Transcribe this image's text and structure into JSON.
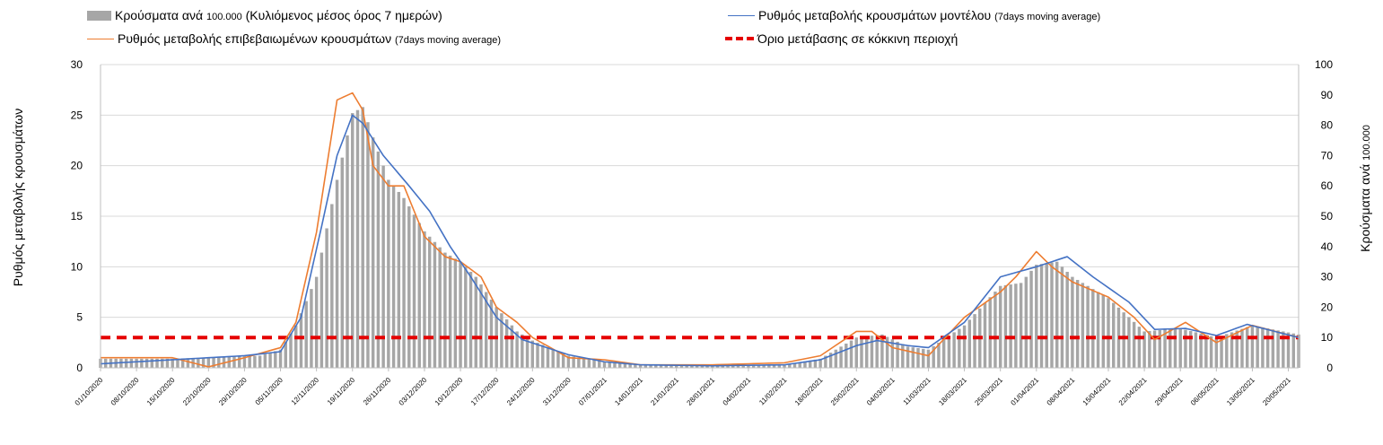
{
  "chart_data": {
    "type": "bar+line",
    "legend": {
      "bars": {
        "label": "Κρούσματα ανά",
        "small": "100.000",
        "label2": "(Κυλιόμενος μέσος όρος 7 ημερών)"
      },
      "model": {
        "label": "Ρυθμός μεταβολής κρουσμάτων μοντέλου",
        "small": "(7days moving average)"
      },
      "confirmed": {
        "label": "Ρυθμός μεταβολής επιβεβαιωμένων κρουσμάτων",
        "small": "(7days moving average)"
      },
      "threshold": {
        "label": "Όριο μετάβασης σε κόκκινη περιοχή"
      }
    },
    "ylabel_left": "Ρυθμός μεταβολής κρουσμάτων",
    "ylabel_right": "Κρούσματα ανά",
    "ylabel_right_small": "100.000",
    "ylim_left": [
      0,
      30
    ],
    "ylim_right": [
      0,
      100
    ],
    "yticks_left": [
      0,
      5,
      10,
      15,
      20,
      25,
      30
    ],
    "yticks_right": [
      0,
      10,
      20,
      30,
      40,
      50,
      60,
      70,
      80,
      90,
      100
    ],
    "grid": true,
    "x_start": "01/10/2020",
    "x_end": "22/05/2021",
    "xticks": [
      "01/10/2020",
      "08/10/2020",
      "15/10/2020",
      "22/10/2020",
      "29/10/2020",
      "05/11/2020",
      "12/11/2020",
      "19/11/2020",
      "26/11/2020",
      "03/12/2020",
      "10/12/2020",
      "17/12/2020",
      "24/12/2020",
      "31/12/2020",
      "07/01/2021",
      "14/01/2021",
      "21/01/2021",
      "28/01/2021",
      "04/02/2021",
      "11/02/2021",
      "18/02/2021",
      "25/02/2021",
      "04/03/2021",
      "11/03/2021",
      "18/03/2021",
      "25/03/2021",
      "01/04/2021",
      "08/04/2021",
      "15/04/2021",
      "22/04/2021",
      "29/04/2021",
      "06/05/2021",
      "13/05/2021",
      "20/05/2021"
    ],
    "threshold_value": 3,
    "colors": {
      "bars": "#a6a6a6",
      "model": "#4472c4",
      "confirmed": "#ed7d31",
      "threshold": "#e50000",
      "grid": "#d9d9d9"
    },
    "series": [
      {
        "name": "Κρούσματα ανά 100.000 (Κυλιόμενος μέσος όρος 7 ημερών)",
        "axis": "right",
        "keypoints": [
          [
            "01/10/2020",
            3
          ],
          [
            "15/10/2020",
            3
          ],
          [
            "01/11/2020",
            4
          ],
          [
            "05/11/2020",
            6
          ],
          [
            "08/11/2020",
            14
          ],
          [
            "12/11/2020",
            30
          ],
          [
            "16/11/2020",
            62
          ],
          [
            "19/11/2020",
            84
          ],
          [
            "21/11/2020",
            86
          ],
          [
            "23/11/2020",
            76
          ],
          [
            "26/11/2020",
            62
          ],
          [
            "29/11/2020",
            56
          ],
          [
            "03/12/2020",
            45
          ],
          [
            "07/12/2020",
            38
          ],
          [
            "10/12/2020",
            35
          ],
          [
            "13/12/2020",
            30
          ],
          [
            "17/12/2020",
            20
          ],
          [
            "21/12/2020",
            12
          ],
          [
            "24/12/2020",
            9
          ],
          [
            "31/12/2020",
            4
          ],
          [
            "07/01/2021",
            2
          ],
          [
            "14/01/2021",
            1
          ],
          [
            "28/01/2021",
            1
          ],
          [
            "11/02/2021",
            1
          ],
          [
            "18/02/2021",
            3
          ],
          [
            "25/02/2021",
            10
          ],
          [
            "02/03/2021",
            11
          ],
          [
            "07/03/2021",
            7
          ],
          [
            "11/03/2021",
            6
          ],
          [
            "18/03/2021",
            14
          ],
          [
            "25/03/2021",
            27
          ],
          [
            "29/03/2021",
            28
          ],
          [
            "01/04/2021",
            34
          ],
          [
            "05/04/2021",
            35
          ],
          [
            "08/04/2021",
            30
          ],
          [
            "15/04/2021",
            23
          ],
          [
            "22/04/2021",
            12
          ],
          [
            "29/04/2021",
            13
          ],
          [
            "06/05/2021",
            10
          ],
          [
            "13/05/2021",
            14
          ],
          [
            "22/05/2021",
            11
          ]
        ]
      },
      {
        "name": "Ρυθμός μεταβολής κρουσμάτων μοντέλου (7days moving average)",
        "axis": "left",
        "keypoints": [
          [
            "01/10/2020",
            0.4
          ],
          [
            "15/10/2020",
            0.8
          ],
          [
            "29/10/2020",
            1.2
          ],
          [
            "05/11/2020",
            1.6
          ],
          [
            "09/11/2020",
            5
          ],
          [
            "13/11/2020",
            14
          ],
          [
            "16/11/2020",
            21
          ],
          [
            "19/11/2020",
            25
          ],
          [
            "21/11/2020",
            24.2
          ],
          [
            "25/11/2020",
            21
          ],
          [
            "30/11/2020",
            18
          ],
          [
            "04/12/2020",
            15.5
          ],
          [
            "08/12/2020",
            12
          ],
          [
            "12/12/2020",
            9
          ],
          [
            "17/12/2020",
            5
          ],
          [
            "22/12/2020",
            2.8
          ],
          [
            "31/12/2020",
            1.3
          ],
          [
            "07/01/2021",
            0.6
          ],
          [
            "14/01/2021",
            0.3
          ],
          [
            "28/01/2021",
            0.2
          ],
          [
            "11/02/2021",
            0.3
          ],
          [
            "18/02/2021",
            0.8
          ],
          [
            "25/02/2021",
            2.2
          ],
          [
            "01/03/2021",
            2.7
          ],
          [
            "07/03/2021",
            2.2
          ],
          [
            "11/03/2021",
            2
          ],
          [
            "18/03/2021",
            4.5
          ],
          [
            "25/03/2021",
            9
          ],
          [
            "01/04/2021",
            10
          ],
          [
            "07/04/2021",
            11
          ],
          [
            "12/04/2021",
            9
          ],
          [
            "19/04/2021",
            6.5
          ],
          [
            "24/04/2021",
            3.8
          ],
          [
            "30/04/2021",
            3.9
          ],
          [
            "06/05/2021",
            3.2
          ],
          [
            "12/05/2021",
            4.3
          ],
          [
            "22/05/2021",
            3
          ]
        ]
      },
      {
        "name": "Ρυθμός μεταβολής επιβεβαιωμένων κρουσμάτων (7days moving average)",
        "axis": "left",
        "keypoints": [
          [
            "01/10/2020",
            1
          ],
          [
            "15/10/2020",
            1
          ],
          [
            "22/10/2020",
            0.1
          ],
          [
            "29/10/2020",
            1
          ],
          [
            "05/11/2020",
            2
          ],
          [
            "08/11/2020",
            4.5
          ],
          [
            "12/11/2020",
            13.4
          ],
          [
            "16/11/2020",
            26.5
          ],
          [
            "19/11/2020",
            27.2
          ],
          [
            "21/11/2020",
            25.5
          ],
          [
            "23/11/2020",
            20
          ],
          [
            "26/11/2020",
            18
          ],
          [
            "29/11/2020",
            18
          ],
          [
            "03/12/2020",
            13
          ],
          [
            "07/12/2020",
            11
          ],
          [
            "10/12/2020",
            10.5
          ],
          [
            "14/12/2020",
            9
          ],
          [
            "17/12/2020",
            6
          ],
          [
            "21/12/2020",
            4.5
          ],
          [
            "24/12/2020",
            3
          ],
          [
            "31/12/2020",
            1
          ],
          [
            "07/01/2021",
            0.8
          ],
          [
            "14/01/2021",
            0.3
          ],
          [
            "28/01/2021",
            0.3
          ],
          [
            "11/02/2021",
            0.5
          ],
          [
            "18/02/2021",
            1.2
          ],
          [
            "25/02/2021",
            3.6
          ],
          [
            "28/02/2021",
            3.6
          ],
          [
            "04/03/2021",
            2
          ],
          [
            "11/03/2021",
            1.2
          ],
          [
            "18/03/2021",
            5
          ],
          [
            "25/03/2021",
            7.5
          ],
          [
            "28/03/2021",
            9
          ],
          [
            "01/04/2021",
            11.5
          ],
          [
            "04/04/2021",
            10
          ],
          [
            "08/04/2021",
            8.5
          ],
          [
            "15/04/2021",
            7
          ],
          [
            "20/04/2021",
            5
          ],
          [
            "24/04/2021",
            2.8
          ],
          [
            "30/04/2021",
            4.5
          ],
          [
            "06/05/2021",
            2.5
          ],
          [
            "13/05/2021",
            4.2
          ],
          [
            "22/05/2021",
            3
          ]
        ]
      }
    ]
  }
}
